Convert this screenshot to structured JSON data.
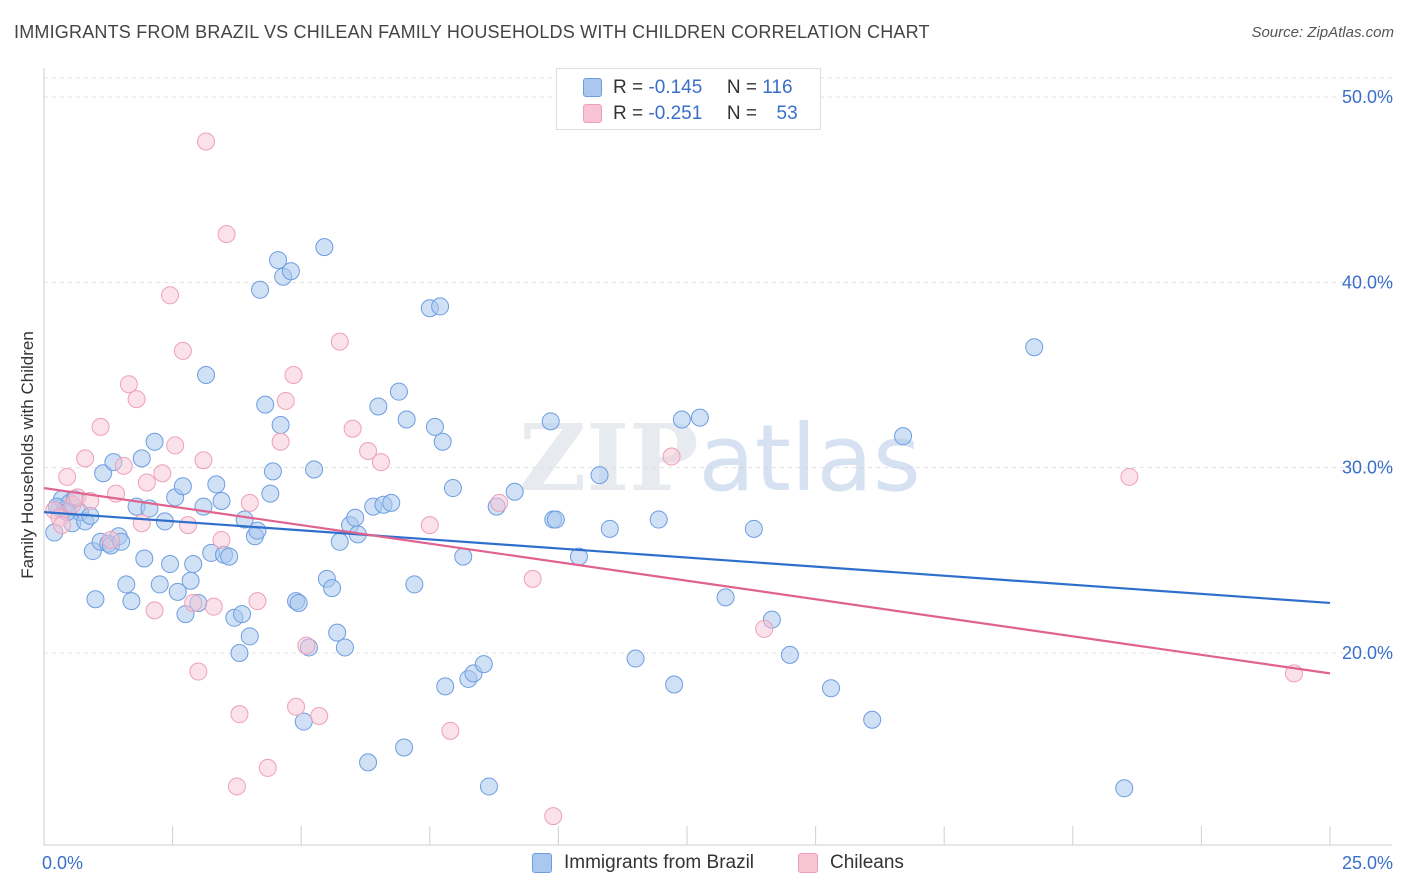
{
  "chart_data": {
    "type": "scatter",
    "title": "IMMIGRANTS FROM BRAZIL VS CHILEAN FAMILY HOUSEHOLDS WITH CHILDREN CORRELATION CHART",
    "source": "Source: ZipAtlas.com",
    "ylabel": "Family Households with Children",
    "xlabel": "",
    "xlim": [
      0,
      25
    ],
    "ylim": [
      11,
      52
    ],
    "x_tick_labels": [
      "0.0%",
      "25.0%"
    ],
    "y_ticks": [
      20,
      30,
      40,
      50
    ],
    "y_tick_labels": [
      "20.0%",
      "30.0%",
      "40.0%",
      "50.0%"
    ],
    "grid": "horizontal dashed",
    "watermark": "ZIPatlas",
    "colors": {
      "brazil_fill": "#aac8ef",
      "brazil_stroke": "#6d9de0",
      "brazil_line": "#2f6fcc",
      "chile_fill": "#f8c3d3",
      "chile_stroke": "#eea0b8",
      "chile_line": "#e0628f",
      "axis_text": "#3a6fc9"
    },
    "legend_stats": [
      {
        "r_label": "R =",
        "r_value": "-0.145",
        "n_label": "N =",
        "n_value": "116"
      },
      {
        "r_label": "R =",
        "r_value": "-0.251",
        "n_label": "N =",
        "n_value": "53"
      }
    ],
    "series": [
      {
        "name": "Immigrants from Brazil",
        "trend": {
          "x": [
            0,
            25
          ],
          "y": [
            27.6,
            22.7
          ]
        },
        "points": [
          [
            0.2,
            26.5
          ],
          [
            0.3,
            27.8
          ],
          [
            0.35,
            28.3
          ],
          [
            0.4,
            27.7
          ],
          [
            0.5,
            28.1
          ],
          [
            0.55,
            27.0
          ],
          [
            0.6,
            28.3
          ],
          [
            0.7,
            27.6
          ],
          [
            0.8,
            27.1
          ],
          [
            0.9,
            27.4
          ],
          [
            0.95,
            25.5
          ],
          [
            1.0,
            22.9
          ],
          [
            1.1,
            26.0
          ],
          [
            1.15,
            29.7
          ],
          [
            1.25,
            25.9
          ],
          [
            1.3,
            25.8
          ],
          [
            1.35,
            30.3
          ],
          [
            1.45,
            26.3
          ],
          [
            1.6,
            23.7
          ],
          [
            1.7,
            22.8
          ],
          [
            1.8,
            27.9
          ],
          [
            1.9,
            30.5
          ],
          [
            1.95,
            25.1
          ],
          [
            2.05,
            27.8
          ],
          [
            2.15,
            31.4
          ],
          [
            2.25,
            23.7
          ],
          [
            2.35,
            27.1
          ],
          [
            2.45,
            24.8
          ],
          [
            2.55,
            28.4
          ],
          [
            2.6,
            23.3
          ],
          [
            2.7,
            29.0
          ],
          [
            2.75,
            22.1
          ],
          [
            2.85,
            23.9
          ],
          [
            2.9,
            24.8
          ],
          [
            3.0,
            22.7
          ],
          [
            3.1,
            27.9
          ],
          [
            3.15,
            35.0
          ],
          [
            3.25,
            25.4
          ],
          [
            3.35,
            29.1
          ],
          [
            3.45,
            28.2
          ],
          [
            3.5,
            25.3
          ],
          [
            3.6,
            25.2
          ],
          [
            3.7,
            21.9
          ],
          [
            3.8,
            20.0
          ],
          [
            3.85,
            22.1
          ],
          [
            3.9,
            27.2
          ],
          [
            4.0,
            20.9
          ],
          [
            4.1,
            26.3
          ],
          [
            4.15,
            26.6
          ],
          [
            4.2,
            39.6
          ],
          [
            4.3,
            33.4
          ],
          [
            4.4,
            28.6
          ],
          [
            4.45,
            29.8
          ],
          [
            4.55,
            41.2
          ],
          [
            4.6,
            32.3
          ],
          [
            4.65,
            40.3
          ],
          [
            4.8,
            40.6
          ],
          [
            4.9,
            22.8
          ],
          [
            4.95,
            22.7
          ],
          [
            5.05,
            16.3
          ],
          [
            5.15,
            20.3
          ],
          [
            5.25,
            29.9
          ],
          [
            5.45,
            41.9
          ],
          [
            5.5,
            24.0
          ],
          [
            5.6,
            23.5
          ],
          [
            5.7,
            21.1
          ],
          [
            5.75,
            26.0
          ],
          [
            5.85,
            20.3
          ],
          [
            5.95,
            26.9
          ],
          [
            6.05,
            27.3
          ],
          [
            6.1,
            26.4
          ],
          [
            6.3,
            14.1
          ],
          [
            6.4,
            27.9
          ],
          [
            6.5,
            33.3
          ],
          [
            6.6,
            28.0
          ],
          [
            6.75,
            28.1
          ],
          [
            6.9,
            34.1
          ],
          [
            7.0,
            14.9
          ],
          [
            7.05,
            32.6
          ],
          [
            7.2,
            23.7
          ],
          [
            7.5,
            38.6
          ],
          [
            7.6,
            32.2
          ],
          [
            7.7,
            38.7
          ],
          [
            7.75,
            31.4
          ],
          [
            7.8,
            18.2
          ],
          [
            7.95,
            28.9
          ],
          [
            8.15,
            25.2
          ],
          [
            8.25,
            18.6
          ],
          [
            8.35,
            18.9
          ],
          [
            8.55,
            19.4
          ],
          [
            8.65,
            12.8
          ],
          [
            8.8,
            27.9
          ],
          [
            9.15,
            28.7
          ],
          [
            9.85,
            32.5
          ],
          [
            9.9,
            27.2
          ],
          [
            9.95,
            27.2
          ],
          [
            10.4,
            25.2
          ],
          [
            10.8,
            29.6
          ],
          [
            11.0,
            26.7
          ],
          [
            11.5,
            19.7
          ],
          [
            11.95,
            27.2
          ],
          [
            12.25,
            18.3
          ],
          [
            12.4,
            32.6
          ],
          [
            12.75,
            32.7
          ],
          [
            13.25,
            23.0
          ],
          [
            13.8,
            26.7
          ],
          [
            14.15,
            21.8
          ],
          [
            14.5,
            19.9
          ],
          [
            15.3,
            18.1
          ],
          [
            16.1,
            16.4
          ],
          [
            16.7,
            31.7
          ],
          [
            19.25,
            36.5
          ],
          [
            21.0,
            12.7
          ],
          [
            0.25,
            27.9
          ],
          [
            0.45,
            27.6
          ],
          [
            1.5,
            26.0
          ]
        ]
      },
      {
        "name": "Chileans",
        "trend": {
          "x": [
            0,
            25
          ],
          "y": [
            28.9,
            18.9
          ]
        },
        "points": [
          [
            0.2,
            27.7
          ],
          [
            0.3,
            27.3
          ],
          [
            0.35,
            26.9
          ],
          [
            0.45,
            29.5
          ],
          [
            0.55,
            28.0
          ],
          [
            0.65,
            28.4
          ],
          [
            0.8,
            30.5
          ],
          [
            0.9,
            28.2
          ],
          [
            1.1,
            32.2
          ],
          [
            1.3,
            26.1
          ],
          [
            1.4,
            28.6
          ],
          [
            1.55,
            30.1
          ],
          [
            1.65,
            34.5
          ],
          [
            1.8,
            33.7
          ],
          [
            1.9,
            27.0
          ],
          [
            2.0,
            29.2
          ],
          [
            2.15,
            22.3
          ],
          [
            2.3,
            29.7
          ],
          [
            2.45,
            39.3
          ],
          [
            2.55,
            31.2
          ],
          [
            2.7,
            36.3
          ],
          [
            2.8,
            26.9
          ],
          [
            2.9,
            22.7
          ],
          [
            3.0,
            19.0
          ],
          [
            3.1,
            30.4
          ],
          [
            3.15,
            47.6
          ],
          [
            3.3,
            22.5
          ],
          [
            3.45,
            26.1
          ],
          [
            3.55,
            42.6
          ],
          [
            3.75,
            12.8
          ],
          [
            3.8,
            16.7
          ],
          [
            4.0,
            28.1
          ],
          [
            4.15,
            22.8
          ],
          [
            4.35,
            13.8
          ],
          [
            4.6,
            31.4
          ],
          [
            4.7,
            33.6
          ],
          [
            4.85,
            35.0
          ],
          [
            4.9,
            17.1
          ],
          [
            5.1,
            20.4
          ],
          [
            5.35,
            16.6
          ],
          [
            5.75,
            36.8
          ],
          [
            6.0,
            32.1
          ],
          [
            6.3,
            30.9
          ],
          [
            6.55,
            30.3
          ],
          [
            7.5,
            26.9
          ],
          [
            7.9,
            15.8
          ],
          [
            8.85,
            28.1
          ],
          [
            9.5,
            24.0
          ],
          [
            9.9,
            11.2
          ],
          [
            12.2,
            30.6
          ],
          [
            14.0,
            21.3
          ],
          [
            21.1,
            29.5
          ],
          [
            24.3,
            18.9
          ]
        ]
      }
    ]
  },
  "legend_bottom": [
    {
      "label": "Immigrants from Brazil"
    },
    {
      "label": "Chileans"
    }
  ]
}
